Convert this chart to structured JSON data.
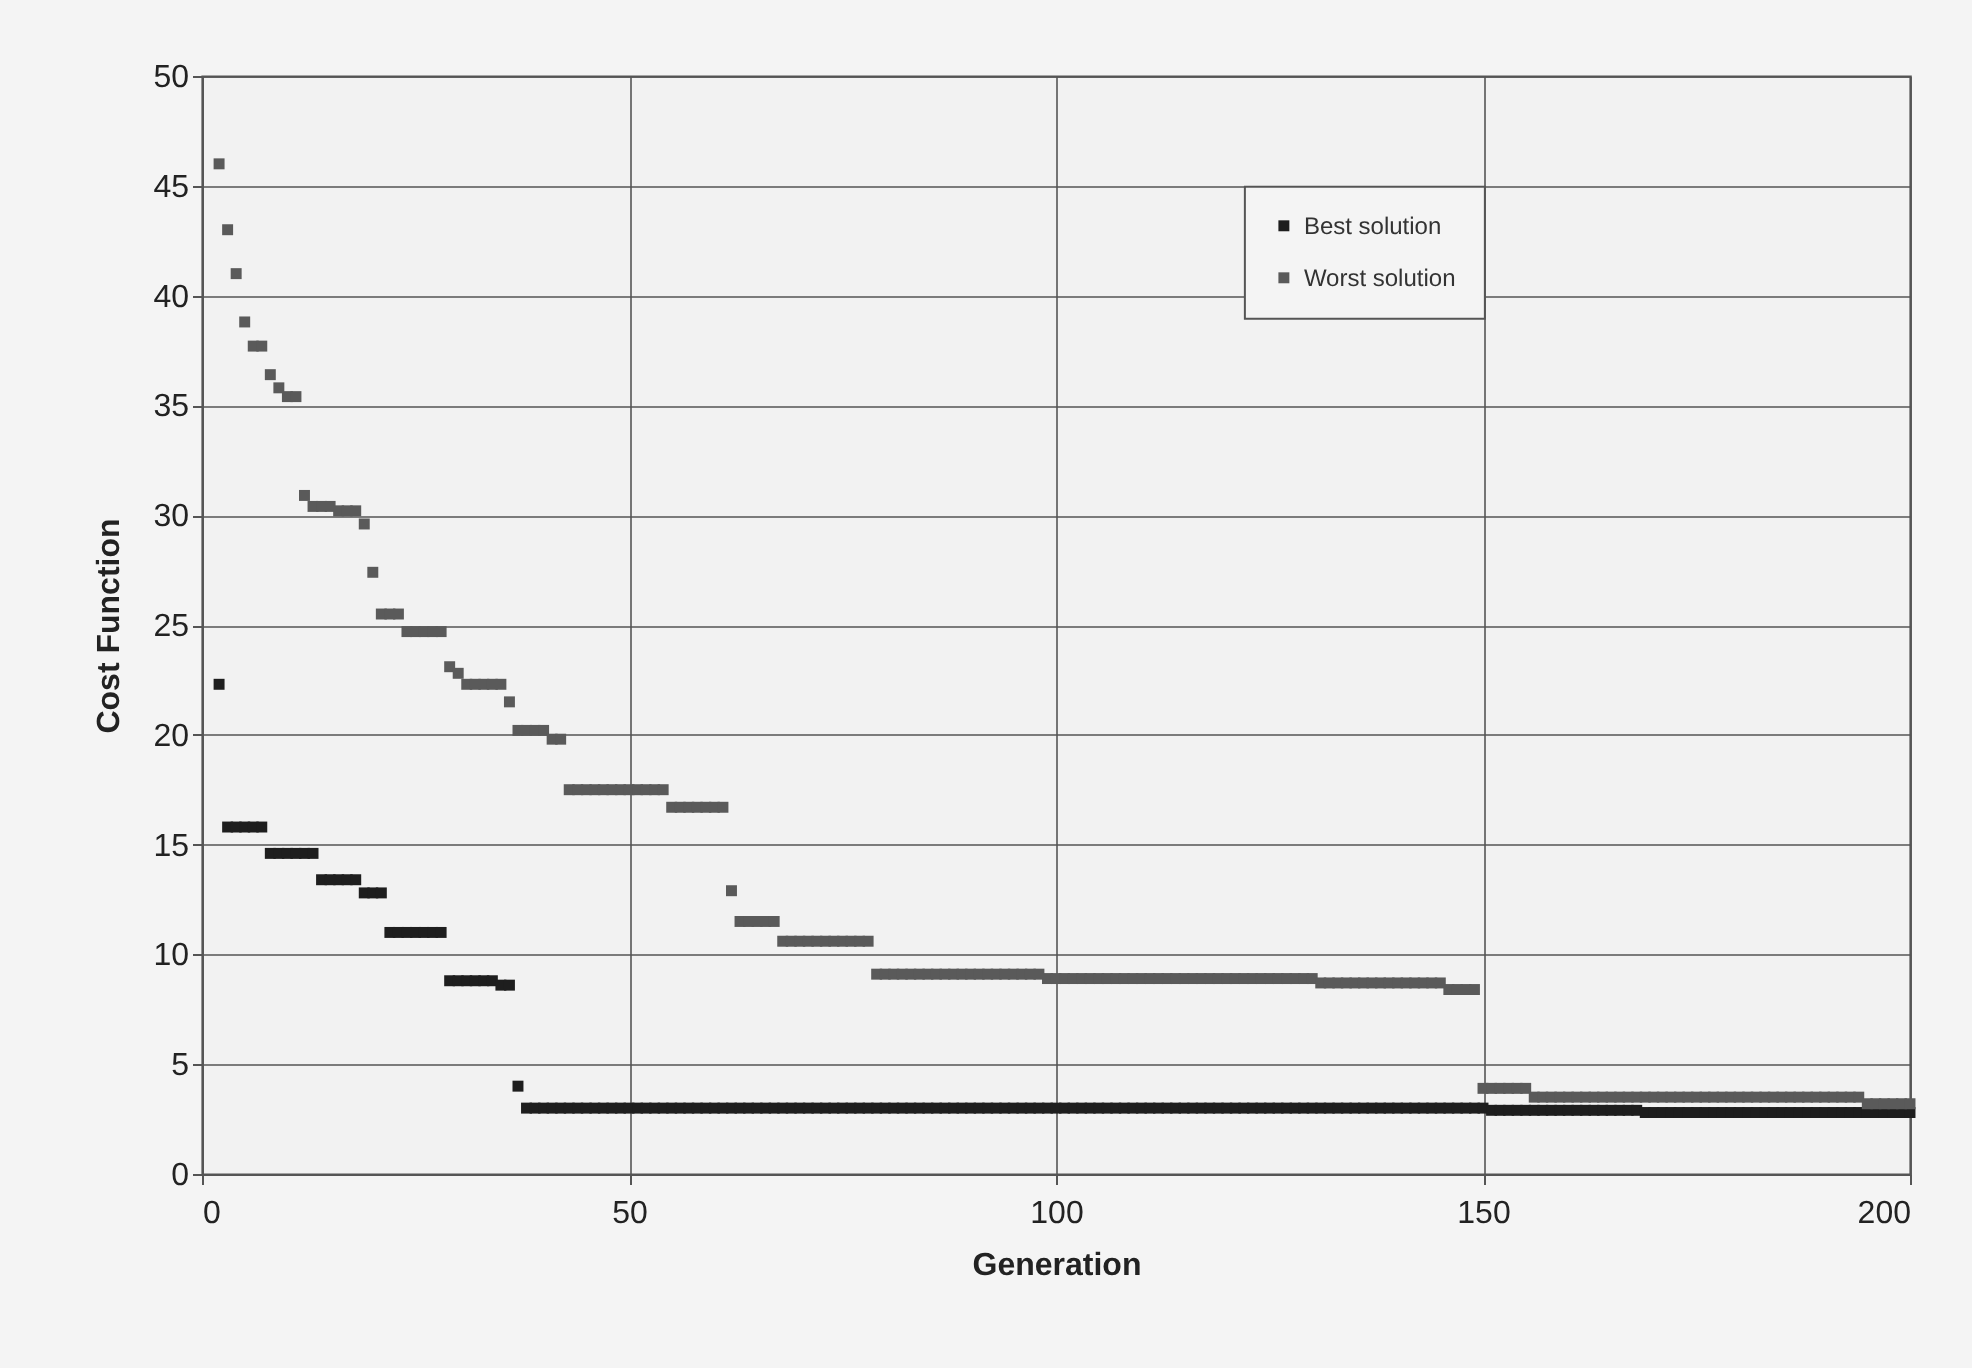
{
  "chart_data": {
    "type": "scatter",
    "xlabel": "Generation",
    "ylabel": "Cost Function",
    "x": [
      2,
      3,
      4,
      5,
      6,
      7,
      8,
      9,
      10,
      11,
      12,
      13,
      14,
      15,
      16,
      17,
      18,
      19,
      20,
      21,
      22,
      23,
      24,
      25,
      26,
      27,
      28,
      29,
      30,
      31,
      32,
      33,
      34,
      35,
      36,
      37,
      38,
      39,
      40,
      41,
      42,
      43,
      44,
      45,
      46,
      47,
      48,
      49,
      50,
      51,
      52,
      53,
      54,
      55,
      56,
      57,
      58,
      59,
      60,
      61,
      62,
      63,
      64,
      65,
      66,
      67,
      68,
      69,
      70,
      71,
      72,
      73,
      74,
      75,
      76,
      77,
      78,
      79,
      80,
      81,
      82,
      83,
      84,
      85,
      86,
      87,
      88,
      89,
      90,
      91,
      92,
      93,
      94,
      95,
      96,
      97,
      98,
      99,
      100,
      101,
      102,
      103,
      104,
      105,
      106,
      107,
      108,
      109,
      110,
      111,
      112,
      113,
      114,
      115,
      116,
      117,
      118,
      119,
      120,
      121,
      122,
      123,
      124,
      125,
      126,
      127,
      128,
      129,
      130,
      131,
      132,
      133,
      134,
      135,
      136,
      137,
      138,
      139,
      140,
      141,
      142,
      143,
      144,
      145,
      146,
      147,
      148,
      149,
      150,
      151,
      152,
      153,
      154,
      155,
      156,
      157,
      158,
      159,
      160,
      161,
      162,
      163,
      164,
      165,
      166,
      167,
      168,
      169,
      170,
      171,
      172,
      173,
      174,
      175,
      176,
      177,
      178,
      179,
      180,
      181,
      182,
      183,
      184,
      185,
      186,
      187,
      188,
      189,
      190,
      191,
      192,
      193,
      194,
      195,
      196,
      197,
      198,
      199,
      200
    ],
    "series": [
      {
        "name": "Best solution",
        "color": "#1e1e1e",
        "values": [
          22.3,
          15.8,
          15.8,
          15.8,
          15.8,
          15.8,
          14.6,
          14.6,
          14.6,
          14.6,
          14.6,
          14.6,
          13.4,
          13.4,
          13.4,
          13.4,
          13.4,
          12.8,
          12.8,
          12.8,
          11.0,
          11.0,
          11.0,
          11.0,
          11.0,
          11.0,
          11.0,
          8.8,
          8.8,
          8.8,
          8.8,
          8.8,
          8.8,
          8.6,
          8.6,
          4.0,
          3.0,
          3.0,
          3.0,
          3.0,
          3.0,
          3.0,
          3.0,
          3.0,
          3.0,
          3.0,
          3.0,
          3.0,
          3.0,
          3.0,
          3.0,
          3.0,
          3.0,
          3.0,
          3.0,
          3.0,
          3.0,
          3.0,
          3.0,
          3.0,
          3.0,
          3.0,
          3.0,
          3.0,
          3.0,
          3.0,
          3.0,
          3.0,
          3.0,
          3.0,
          3.0,
          3.0,
          3.0,
          3.0,
          3.0,
          3.0,
          3.0,
          3.0,
          3.0,
          3.0,
          3.0,
          3.0,
          3.0,
          3.0,
          3.0,
          3.0,
          3.0,
          3.0,
          3.0,
          3.0,
          3.0,
          3.0,
          3.0,
          3.0,
          3.0,
          3.0,
          3.0,
          3.0,
          3.0,
          3.0,
          3.0,
          3.0,
          3.0,
          3.0,
          3.0,
          3.0,
          3.0,
          3.0,
          3.0,
          3.0,
          3.0,
          3.0,
          3.0,
          3.0,
          3.0,
          3.0,
          3.0,
          3.0,
          3.0,
          3.0,
          3.0,
          3.0,
          3.0,
          3.0,
          3.0,
          3.0,
          3.0,
          3.0,
          3.0,
          3.0,
          3.0,
          3.0,
          3.0,
          3.0,
          3.0,
          3.0,
          3.0,
          3.0,
          3.0,
          3.0,
          3.0,
          3.0,
          3.0,
          3.0,
          3.0,
          3.0,
          3.0,
          3.0,
          3.0,
          2.9,
          2.9,
          2.9,
          2.9,
          2.9,
          2.9,
          2.9,
          2.9,
          2.9,
          2.9,
          2.9,
          2.9,
          2.9,
          2.9,
          2.9,
          2.9,
          2.9,
          2.9,
          2.8,
          2.8,
          2.8,
          2.8,
          2.8,
          2.8,
          2.8,
          2.8,
          2.8,
          2.8,
          2.8,
          2.8,
          2.8,
          2.8,
          2.8,
          2.8,
          2.8,
          2.8,
          2.8,
          2.8,
          2.8,
          2.8,
          2.8,
          2.8,
          2.8,
          2.8,
          2.8,
          2.8,
          2.8,
          2.8,
          2.8,
          2.8
        ]
      },
      {
        "name": "Worst solution",
        "color": "#5a5a5a",
        "values": [
          46,
          43,
          41,
          38.8,
          37.7,
          37.7,
          36.4,
          35.8,
          35.4,
          35.4,
          30.9,
          30.4,
          30.4,
          30.4,
          30.2,
          30.2,
          30.2,
          29.6,
          27.4,
          25.5,
          25.5,
          25.5,
          24.7,
          24.7,
          24.7,
          24.7,
          24.7,
          23.1,
          22.8,
          22.3,
          22.3,
          22.3,
          22.3,
          22.3,
          21.5,
          20.2,
          20.2,
          20.2,
          20.2,
          19.8,
          19.8,
          17.5,
          17.5,
          17.5,
          17.5,
          17.5,
          17.5,
          17.5,
          17.5,
          17.5,
          17.5,
          17.5,
          17.5,
          16.7,
          16.7,
          16.7,
          16.7,
          16.7,
          16.7,
          16.7,
          12.9,
          11.5,
          11.5,
          11.5,
          11.5,
          11.5,
          10.6,
          10.6,
          10.6,
          10.6,
          10.6,
          10.6,
          10.6,
          10.6,
          10.6,
          10.6,
          10.6,
          9.1,
          9.1,
          9.1,
          9.1,
          9.1,
          9.1,
          9.1,
          9.1,
          9.1,
          9.1,
          9.1,
          9.1,
          9.1,
          9.1,
          9.1,
          9.1,
          9.1,
          9.1,
          9.1,
          9.1,
          8.9,
          8.9,
          8.9,
          8.9,
          8.9,
          8.9,
          8.9,
          8.9,
          8.9,
          8.9,
          8.9,
          8.9,
          8.9,
          8.9,
          8.9,
          8.9,
          8.9,
          8.9,
          8.9,
          8.9,
          8.9,
          8.9,
          8.9,
          8.9,
          8.9,
          8.9,
          8.9,
          8.9,
          8.9,
          8.9,
          8.9,
          8.9,
          8.7,
          8.7,
          8.7,
          8.7,
          8.7,
          8.7,
          8.7,
          8.7,
          8.7,
          8.7,
          8.7,
          8.7,
          8.7,
          8.7,
          8.7,
          8.4,
          8.4,
          8.4,
          8.4,
          3.9,
          3.9,
          3.9,
          3.9,
          3.9,
          3.9,
          3.5,
          3.5,
          3.5,
          3.5,
          3.5,
          3.5,
          3.5,
          3.5,
          3.5,
          3.5,
          3.5,
          3.5,
          3.5,
          3.5,
          3.5,
          3.5,
          3.5,
          3.5,
          3.5,
          3.5,
          3.5,
          3.5,
          3.5,
          3.5,
          3.5,
          3.5,
          3.5,
          3.5,
          3.5,
          3.5,
          3.5,
          3.5,
          3.5,
          3.5,
          3.5,
          3.5,
          3.5,
          3.5,
          3.5,
          3.2,
          3.2,
          3.2,
          3.2,
          3.2,
          3.2
        ]
      }
    ],
    "xlim": [
      0,
      200
    ],
    "xticks": [
      0,
      50,
      100,
      150,
      200
    ],
    "ylim": [
      0,
      50
    ],
    "yticks": [
      0,
      5,
      10,
      15,
      20,
      25,
      30,
      35,
      40,
      45,
      50
    ],
    "grid": true,
    "legend": "top right",
    "marker": "square"
  }
}
